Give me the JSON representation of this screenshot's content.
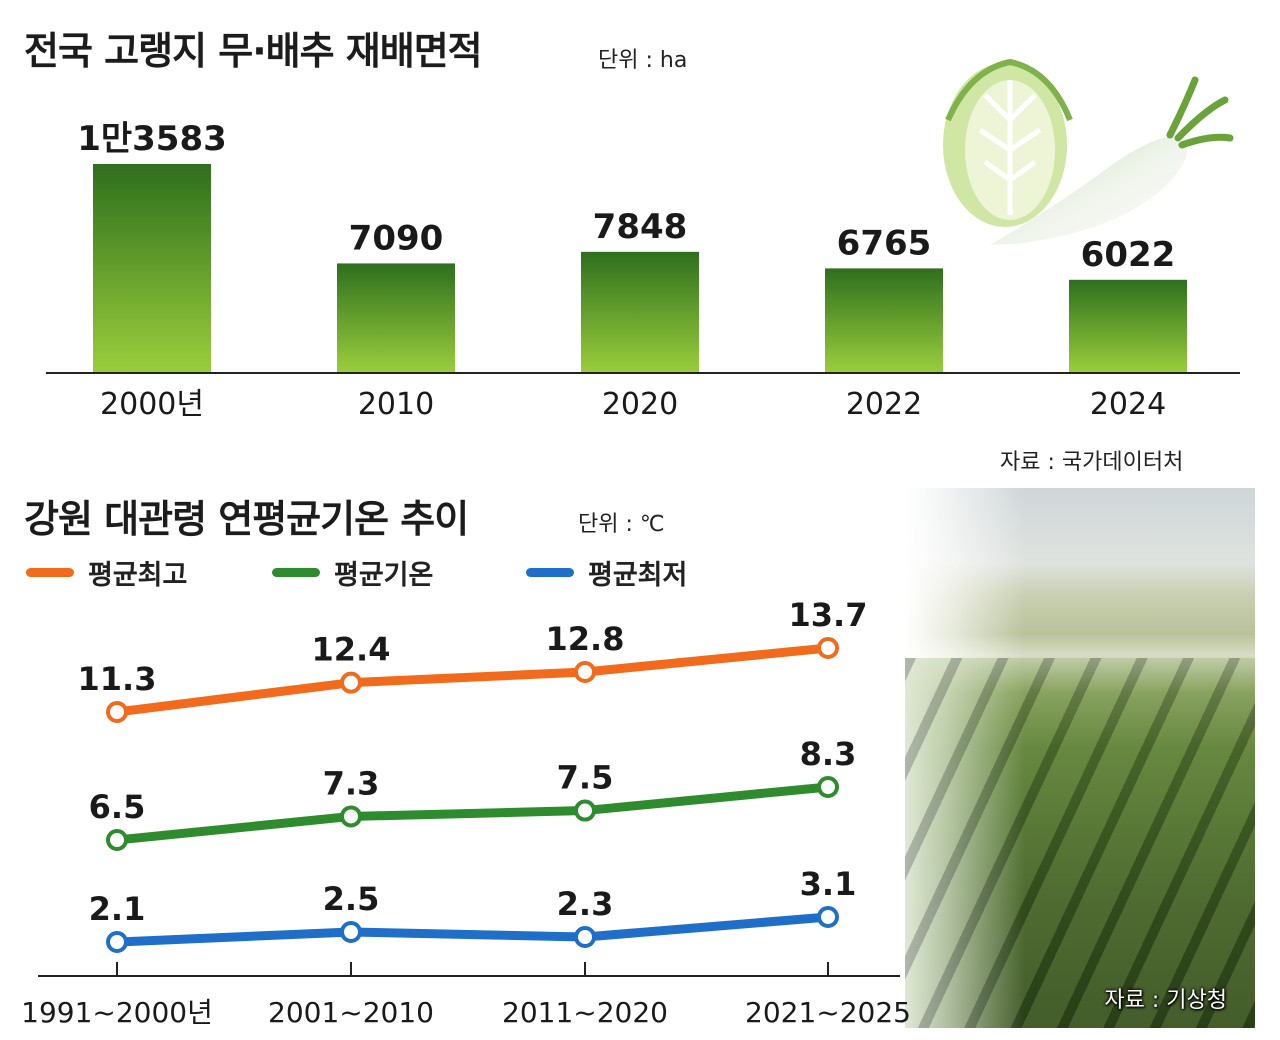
{
  "chart1": {
    "title": "전국 고랭지 무·배추 재배면적",
    "unit": "단위 : ha",
    "source": "자료 : 국가데이터처",
    "bar_colors": [
      "#2f6f1e",
      "#9acd3c"
    ]
  },
  "chart2": {
    "title": "강원 대관령 연평균기온 추이",
    "unit": "단위 : ℃",
    "source": "자료 : 기상청",
    "legend": [
      "평균최고",
      "평균기온",
      "평균최저"
    ]
  },
  "chart_data": [
    {
      "type": "bar",
      "title": "전국 고랭지 무·배추 재배면적",
      "unit": "ha",
      "categories": [
        "2000년",
        "2010",
        "2020",
        "2022",
        "2024"
      ],
      "values": [
        13583,
        7090,
        7848,
        6765,
        6022
      ],
      "value_labels": [
        "1만3583",
        "7090",
        "7848",
        "6765",
        "6022"
      ],
      "ylim": [
        0,
        13583
      ]
    },
    {
      "type": "line",
      "title": "강원 대관령 연평균기온 추이",
      "unit": "℃",
      "categories": [
        "1991~2000년",
        "2001~2010",
        "2011~2020",
        "2021~2025"
      ],
      "legend_position": "top-left",
      "series": [
        {
          "name": "평균최고",
          "color": "#f26a1b",
          "values": [
            11.3,
            12.4,
            12.8,
            13.7
          ]
        },
        {
          "name": "평균기온",
          "color": "#2e8b2e",
          "values": [
            6.5,
            7.3,
            7.5,
            8.3
          ]
        },
        {
          "name": "평균최저",
          "color": "#1f6fc9",
          "values": [
            2.1,
            2.5,
            2.3,
            3.1
          ]
        }
      ]
    }
  ],
  "icons": [
    "cabbage-radish-illustration",
    "cabbage-field-photo"
  ]
}
